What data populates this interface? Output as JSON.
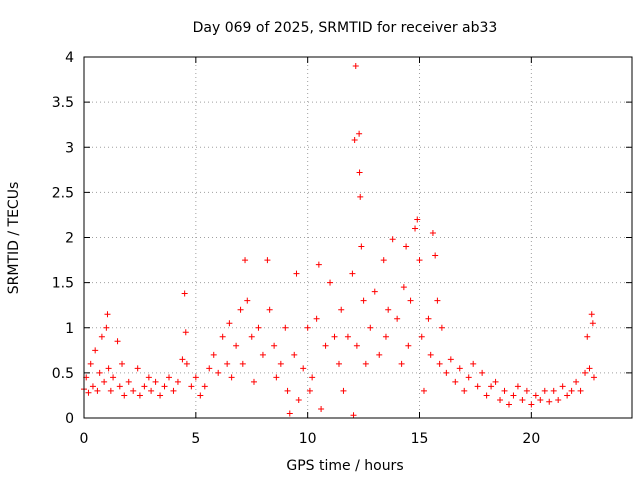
{
  "chart_data": {
    "type": "scatter",
    "title": "Day 069 of 2025, SRMTID for receiver ab33",
    "xlabel": "GPS time / hours",
    "ylabel": "SRMTID / TECUs",
    "xlim": [
      0,
      24.5
    ],
    "ylim": [
      0,
      4
    ],
    "xticks": [
      0,
      5,
      10,
      15,
      20
    ],
    "xtick_labels": [
      "0",
      "5",
      "10",
      "15",
      "20"
    ],
    "yticks": [
      0,
      0.5,
      1,
      1.5,
      2,
      2.5,
      3,
      3.5,
      4
    ],
    "ytick_labels": [
      "0",
      "0.5",
      "1",
      "1.5",
      "2",
      "2.5",
      "3",
      "3.5",
      "4"
    ],
    "grid": true,
    "marker": "+",
    "color": "#ff0000",
    "series": [
      {
        "name": "SRMTID",
        "points": [
          [
            0.0,
            0.32
          ],
          [
            0.1,
            0.45
          ],
          [
            0.2,
            0.28
          ],
          [
            0.3,
            0.6
          ],
          [
            0.4,
            0.35
          ],
          [
            0.5,
            0.75
          ],
          [
            0.6,
            0.3
          ],
          [
            0.7,
            0.5
          ],
          [
            0.8,
            0.9
          ],
          [
            0.9,
            0.4
          ],
          [
            1.0,
            1.0
          ],
          [
            1.05,
            1.15
          ],
          [
            1.1,
            0.55
          ],
          [
            1.2,
            0.3
          ],
          [
            1.3,
            0.45
          ],
          [
            1.5,
            0.85
          ],
          [
            1.6,
            0.35
          ],
          [
            1.7,
            0.6
          ],
          [
            1.8,
            0.25
          ],
          [
            2.0,
            0.4
          ],
          [
            2.2,
            0.3
          ],
          [
            2.4,
            0.55
          ],
          [
            2.5,
            0.25
          ],
          [
            2.7,
            0.35
          ],
          [
            2.9,
            0.45
          ],
          [
            3.0,
            0.3
          ],
          [
            3.2,
            0.4
          ],
          [
            3.4,
            0.25
          ],
          [
            3.6,
            0.35
          ],
          [
            3.8,
            0.45
          ],
          [
            4.0,
            0.3
          ],
          [
            4.2,
            0.4
          ],
          [
            4.4,
            0.65
          ],
          [
            4.5,
            1.38
          ],
          [
            4.55,
            0.95
          ],
          [
            4.6,
            0.6
          ],
          [
            4.8,
            0.35
          ],
          [
            5.0,
            0.45
          ],
          [
            5.2,
            0.25
          ],
          [
            5.4,
            0.35
          ],
          [
            5.6,
            0.55
          ],
          [
            5.8,
            0.7
          ],
          [
            6.0,
            0.5
          ],
          [
            6.2,
            0.9
          ],
          [
            6.4,
            0.6
          ],
          [
            6.5,
            1.05
          ],
          [
            6.6,
            0.45
          ],
          [
            6.8,
            0.8
          ],
          [
            7.0,
            1.2
          ],
          [
            7.1,
            0.6
          ],
          [
            7.2,
            1.75
          ],
          [
            7.3,
            1.3
          ],
          [
            7.5,
            0.9
          ],
          [
            7.6,
            0.4
          ],
          [
            7.8,
            1.0
          ],
          [
            8.0,
            0.7
          ],
          [
            8.2,
            1.75
          ],
          [
            8.3,
            1.2
          ],
          [
            8.5,
            0.8
          ],
          [
            8.6,
            0.45
          ],
          [
            8.8,
            0.6
          ],
          [
            9.0,
            1.0
          ],
          [
            9.1,
            0.3
          ],
          [
            9.2,
            0.05
          ],
          [
            9.4,
            0.7
          ],
          [
            9.5,
            1.6
          ],
          [
            9.6,
            0.2
          ],
          [
            9.8,
            0.55
          ],
          [
            10.0,
            1.0
          ],
          [
            10.1,
            0.3
          ],
          [
            10.2,
            0.45
          ],
          [
            10.4,
            1.1
          ],
          [
            10.5,
            1.7
          ],
          [
            10.6,
            0.1
          ],
          [
            10.8,
            0.8
          ],
          [
            11.0,
            1.5
          ],
          [
            11.2,
            0.9
          ],
          [
            11.4,
            0.6
          ],
          [
            11.5,
            1.2
          ],
          [
            11.6,
            0.3
          ],
          [
            11.8,
            0.9
          ],
          [
            12.0,
            1.6
          ],
          [
            12.05,
            0.03
          ],
          [
            12.1,
            3.08
          ],
          [
            12.15,
            3.9
          ],
          [
            12.2,
            0.8
          ],
          [
            12.3,
            3.15
          ],
          [
            12.32,
            2.72
          ],
          [
            12.35,
            2.45
          ],
          [
            12.4,
            1.9
          ],
          [
            12.5,
            1.3
          ],
          [
            12.6,
            0.6
          ],
          [
            12.8,
            1.0
          ],
          [
            13.0,
            1.4
          ],
          [
            13.2,
            0.7
          ],
          [
            13.4,
            1.75
          ],
          [
            13.5,
            0.9
          ],
          [
            13.6,
            1.2
          ],
          [
            13.8,
            1.98
          ],
          [
            14.0,
            1.1
          ],
          [
            14.2,
            0.6
          ],
          [
            14.3,
            1.45
          ],
          [
            14.4,
            1.9
          ],
          [
            14.5,
            0.8
          ],
          [
            14.6,
            1.3
          ],
          [
            14.8,
            2.1
          ],
          [
            14.9,
            2.2
          ],
          [
            15.0,
            1.75
          ],
          [
            15.1,
            0.9
          ],
          [
            15.2,
            0.3
          ],
          [
            15.4,
            1.1
          ],
          [
            15.5,
            0.7
          ],
          [
            15.6,
            2.05
          ],
          [
            15.7,
            1.8
          ],
          [
            15.8,
            1.3
          ],
          [
            15.9,
            0.6
          ],
          [
            16.0,
            1.0
          ],
          [
            16.2,
            0.5
          ],
          [
            16.4,
            0.65
          ],
          [
            16.6,
            0.4
          ],
          [
            16.8,
            0.55
          ],
          [
            17.0,
            0.3
          ],
          [
            17.2,
            0.45
          ],
          [
            17.4,
            0.6
          ],
          [
            17.6,
            0.35
          ],
          [
            17.8,
            0.5
          ],
          [
            18.0,
            0.25
          ],
          [
            18.2,
            0.35
          ],
          [
            18.4,
            0.4
          ],
          [
            18.6,
            0.2
          ],
          [
            18.8,
            0.3
          ],
          [
            19.0,
            0.15
          ],
          [
            19.2,
            0.25
          ],
          [
            19.4,
            0.35
          ],
          [
            19.6,
            0.2
          ],
          [
            19.8,
            0.3
          ],
          [
            20.0,
            0.15
          ],
          [
            20.2,
            0.25
          ],
          [
            20.4,
            0.2
          ],
          [
            20.6,
            0.3
          ],
          [
            20.8,
            0.18
          ],
          [
            21.0,
            0.3
          ],
          [
            21.2,
            0.2
          ],
          [
            21.4,
            0.35
          ],
          [
            21.6,
            0.25
          ],
          [
            21.8,
            0.3
          ],
          [
            22.0,
            0.4
          ],
          [
            22.2,
            0.3
          ],
          [
            22.4,
            0.5
          ],
          [
            22.5,
            0.9
          ],
          [
            22.6,
            0.55
          ],
          [
            22.7,
            1.15
          ],
          [
            22.75,
            1.05
          ],
          [
            22.8,
            0.45
          ]
        ]
      }
    ]
  }
}
